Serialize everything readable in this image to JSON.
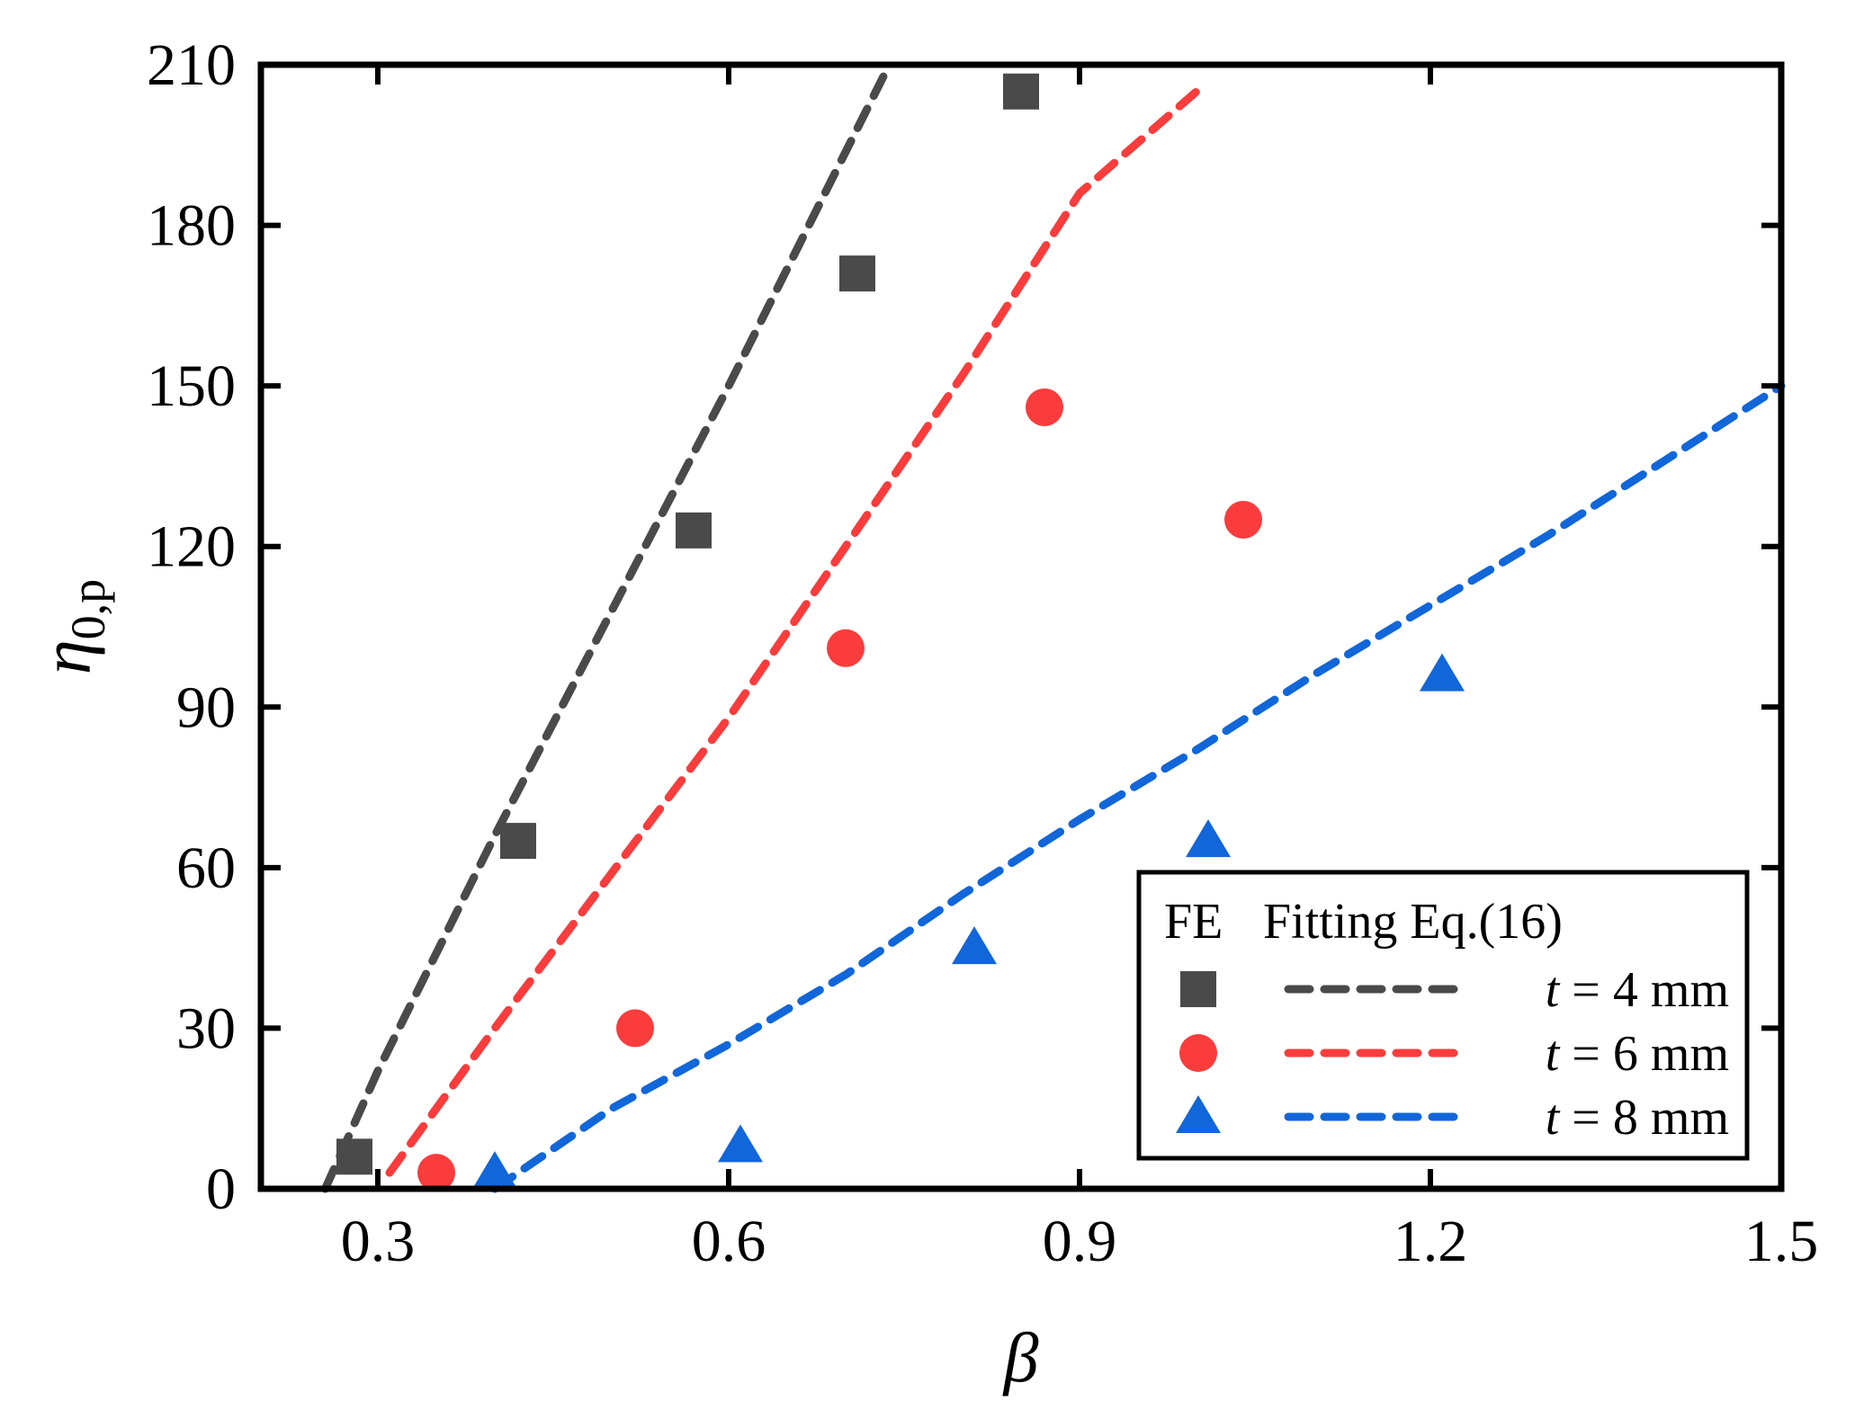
{
  "chart_data": {
    "type": "scatter",
    "title": "",
    "xlabel": "β",
    "ylabel": {
      "symbol": "η",
      "subscript": "0,p"
    },
    "xlim": [
      0.2,
      1.5
    ],
    "ylim": [
      0,
      210
    ],
    "xticks": [
      0.3,
      0.6,
      0.9,
      1.2,
      1.5
    ],
    "xtick_labels": [
      "0.3",
      "0.6",
      "0.9",
      "1.2",
      "1.5"
    ],
    "yticks": [
      0,
      30,
      60,
      90,
      120,
      150,
      180,
      210
    ],
    "ytick_labels": [
      "0",
      "30",
      "60",
      "90",
      "120",
      "150",
      "180",
      "210"
    ],
    "grid": false,
    "legend": {
      "position": "bottom-right",
      "header_markers": "FE",
      "header_lines": "Fitting Eq.(16)",
      "unit": "mm"
    },
    "series": [
      {
        "name": "t = 4 mm",
        "t_var": "t",
        "t_value": "4",
        "color": "#4a4a4a",
        "marker": "square",
        "points": [
          [
            0.28,
            6
          ],
          [
            0.42,
            65
          ],
          [
            0.57,
            123
          ],
          [
            0.71,
            171
          ],
          [
            0.85,
            205
          ]
        ],
        "fit": [
          [
            0.255,
            0
          ],
          [
            0.3,
            22
          ],
          [
            0.4,
            66
          ],
          [
            0.5,
            108
          ],
          [
            0.6,
            150
          ],
          [
            0.68,
            185
          ],
          [
            0.735,
            209
          ]
        ]
      },
      {
        "name": "t = 6 mm",
        "t_var": "t",
        "t_value": "6",
        "color": "#fa3c3c",
        "marker": "circle",
        "points": [
          [
            0.35,
            3
          ],
          [
            0.52,
            30
          ],
          [
            0.7,
            101
          ],
          [
            0.87,
            146
          ],
          [
            1.04,
            125
          ]
        ],
        "fit": [
          [
            0.31,
            3
          ],
          [
            0.4,
            30
          ],
          [
            0.5,
            59
          ],
          [
            0.6,
            88
          ],
          [
            0.7,
            120
          ],
          [
            0.8,
            152
          ],
          [
            0.9,
            186
          ],
          [
            1.0,
            205
          ]
        ]
      },
      {
        "name": "t = 8 mm",
        "t_var": "t",
        "t_value": "8",
        "color": "#1166d9",
        "marker": "triangle",
        "points": [
          [
            0.4,
            3
          ],
          [
            0.61,
            8
          ],
          [
            0.81,
            45
          ],
          [
            1.01,
            65
          ],
          [
            1.21,
            96
          ]
        ],
        "fit": [
          [
            0.4,
            0
          ],
          [
            0.5,
            15
          ],
          [
            0.6,
            27
          ],
          [
            0.7,
            40
          ],
          [
            0.8,
            55
          ],
          [
            0.9,
            69
          ],
          [
            1.0,
            82
          ],
          [
            1.1,
            96
          ],
          [
            1.2,
            109
          ],
          [
            1.3,
            122
          ],
          [
            1.4,
            136
          ],
          [
            1.5,
            150
          ]
        ]
      }
    ]
  }
}
